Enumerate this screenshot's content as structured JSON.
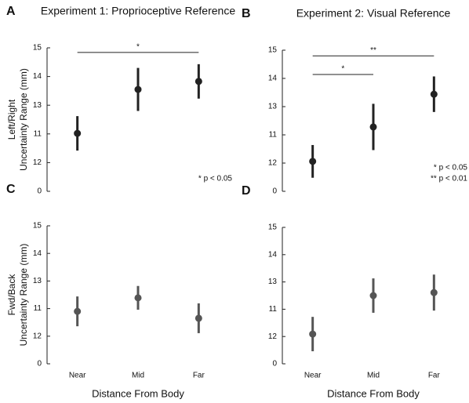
{
  "chart_data": [
    {
      "type": "errorbar",
      "letter": "A",
      "title": "Experiment 1: Proprioceptive Reference",
      "ylabel": [
        "Left/Right",
        "Uncertainty Range (mm)"
      ],
      "values": [
        2.02,
        3.55,
        3.83
      ],
      "errors": [
        0.6,
        0.75,
        0.6
      ],
      "color": "#222222",
      "ylim": [
        0,
        5
      ],
      "yticks": [
        0,
        {
          "value": 1,
          "label": "12"
        },
        {
          "value": 2,
          "label": "11"
        },
        {
          "value": 3,
          "label": "13"
        },
        {
          "value": 4,
          "label": "14"
        },
        {
          "value": 5,
          "label": "15"
        }
      ],
      "significance": [
        {
          "from": 0,
          "to": 2,
          "y": 4.84,
          "label": "*"
        }
      ],
      "notes": [
        "* p < 0.05"
      ]
    },
    {
      "type": "errorbar",
      "letter": "B",
      "title": "Experiment 2: Visual Reference",
      "values": [
        1.06,
        2.28,
        3.44
      ],
      "errors": [
        0.58,
        0.82,
        0.63
      ],
      "color": "#222222",
      "ylim": [
        0,
        5
      ],
      "yticks": [
        0,
        {
          "value": 1,
          "label": "12"
        },
        {
          "value": 2,
          "label": "11"
        },
        {
          "value": 3,
          "label": "13"
        },
        {
          "value": 4,
          "label": "14"
        },
        {
          "value": 5,
          "label": "15"
        }
      ],
      "significance": [
        {
          "from": 0,
          "to": 2,
          "y": 4.8,
          "label": "**"
        },
        {
          "from": 0,
          "to": 1,
          "y": 4.14,
          "label": "*"
        }
      ],
      "notes": [
        "* p < 0.05",
        "** p < 0.01"
      ]
    },
    {
      "type": "errorbar",
      "letter": "C",
      "ylabel": [
        "Fwd/Back",
        "Uncertainty Range (mm)"
      ],
      "xlabel": "Distance From Body",
      "categories": [
        "Near",
        "Mid",
        "Far"
      ],
      "values": [
        1.9,
        2.39,
        1.65
      ],
      "errors": [
        0.54,
        0.43,
        0.54
      ],
      "color": "#555555",
      "ylim": [
        0,
        5
      ],
      "yticks": [
        0,
        {
          "value": 1,
          "label": "12"
        },
        {
          "value": 2,
          "label": "11"
        },
        {
          "value": 3,
          "label": "13"
        },
        {
          "value": 4,
          "label": "14"
        },
        {
          "value": 5,
          "label": "15"
        }
      ]
    },
    {
      "type": "errorbar",
      "letter": "D",
      "xlabel": "Distance From Body",
      "categories": [
        "Near",
        "Mid",
        "Far"
      ],
      "values": [
        1.09,
        2.5,
        2.61
      ],
      "errors": [
        0.63,
        0.63,
        0.66
      ],
      "color": "#555555",
      "ylim": [
        0,
        5
      ],
      "yticks": [
        0,
        {
          "value": 1,
          "label": "12"
        },
        {
          "value": 2,
          "label": "11"
        },
        {
          "value": 3,
          "label": "13"
        },
        {
          "value": 4,
          "label": "14"
        },
        {
          "value": 5,
          "label": "15"
        }
      ]
    }
  ]
}
